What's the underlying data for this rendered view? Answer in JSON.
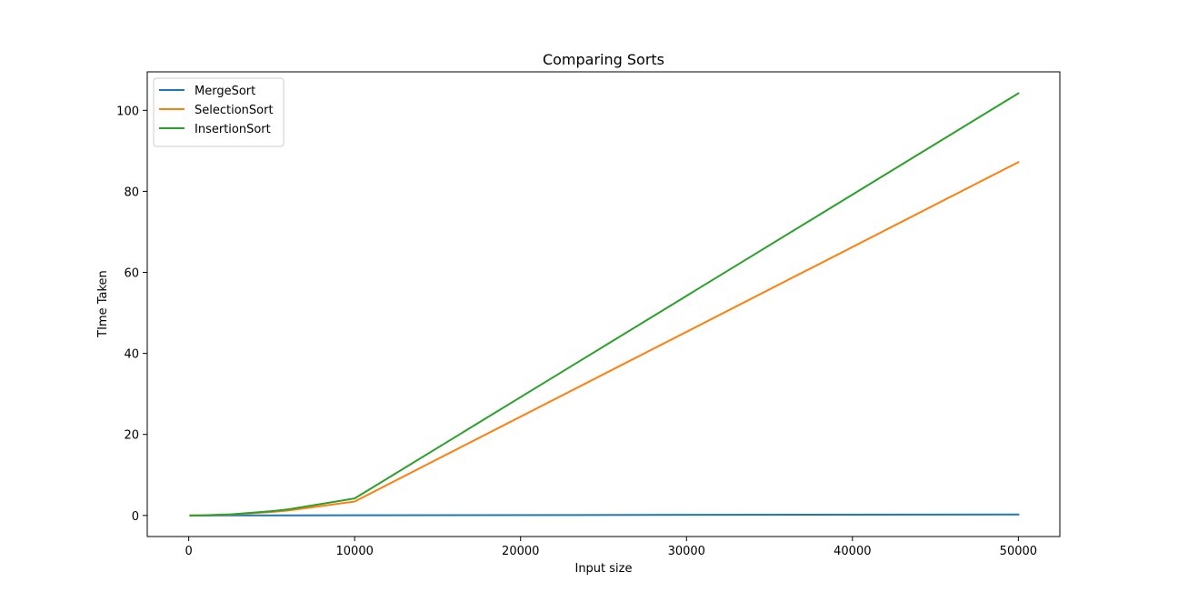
{
  "chart_data": {
    "type": "line",
    "title": "Comparing Sorts",
    "xlabel": "Input size",
    "ylabel": "TIme Taken",
    "xlim": [
      -2500,
      52500
    ],
    "ylim": [
      -5.2,
      109.5
    ],
    "x_ticks": [
      0,
      10000,
      20000,
      30000,
      40000,
      50000
    ],
    "y_ticks": [
      0,
      20,
      40,
      60,
      80,
      100
    ],
    "x_tick_labels": [
      "0",
      "10000",
      "20000",
      "30000",
      "40000",
      "50000"
    ],
    "y_tick_labels": [
      "0",
      "20",
      "40",
      "60",
      "80",
      "100"
    ],
    "legend_position": "top-left",
    "grid": false,
    "x": [
      100,
      1000,
      2500,
      5000,
      6000,
      10000,
      50000
    ],
    "series": [
      {
        "name": "MergeSort",
        "color": "#1f77b4",
        "values": [
          0.0,
          0.0,
          0.01,
          0.02,
          0.02,
          0.04,
          0.25
        ]
      },
      {
        "name": "SelectionSort",
        "color": "#ff7f0e",
        "values": [
          0.0,
          0.04,
          0.22,
          0.86,
          1.22,
          3.45,
          87.2
        ]
      },
      {
        "name": "InsertionSort",
        "color": "#2ca02c",
        "values": [
          0.0,
          0.05,
          0.27,
          1.05,
          1.5,
          4.2,
          104.2
        ]
      }
    ]
  }
}
